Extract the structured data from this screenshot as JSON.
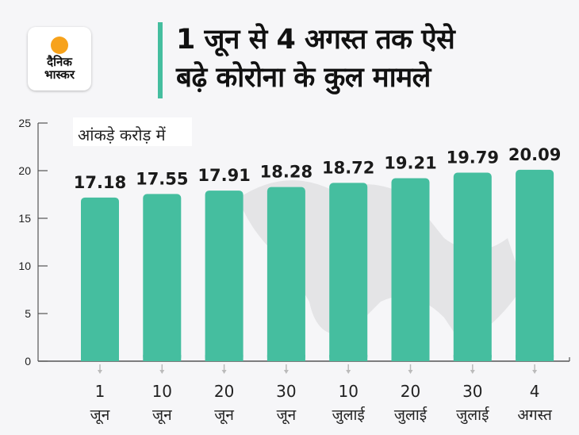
{
  "logo": {
    "line1": "दैनिक",
    "line2": "भास्कर"
  },
  "title_line1": "1 जून से 4 अगस्त तक ऐसे",
  "title_line2": "बढ़े कोरोना के कुल मामले",
  "chart_data": {
    "type": "bar",
    "title": "1 जून से 4 अगस्त तक ऐसे बढ़े कोरोना के कुल मामले",
    "unit_note": "आंकड़े करोड़ में",
    "categories": [
      [
        "1",
        "जून"
      ],
      [
        "10",
        "जून"
      ],
      [
        "20",
        "जून"
      ],
      [
        "30",
        "जून"
      ],
      [
        "10",
        "जुलाई"
      ],
      [
        "20",
        "जुलाई"
      ],
      [
        "30",
        "जुलाई"
      ],
      [
        "4",
        "अगस्त"
      ]
    ],
    "values": [
      17.18,
      17.55,
      17.91,
      18.28,
      18.72,
      19.21,
      19.79,
      20.09
    ],
    "data_labels": [
      "17.18",
      "17.55",
      "17.91",
      "18.28",
      "18.72",
      "19.21",
      "19.79",
      "20.09"
    ],
    "ylim": [
      0,
      25
    ],
    "yticks": [
      0,
      5,
      10,
      15,
      20,
      25
    ],
    "grid": false,
    "bar_color": "#45be9f",
    "background": "world-map-watermark"
  }
}
